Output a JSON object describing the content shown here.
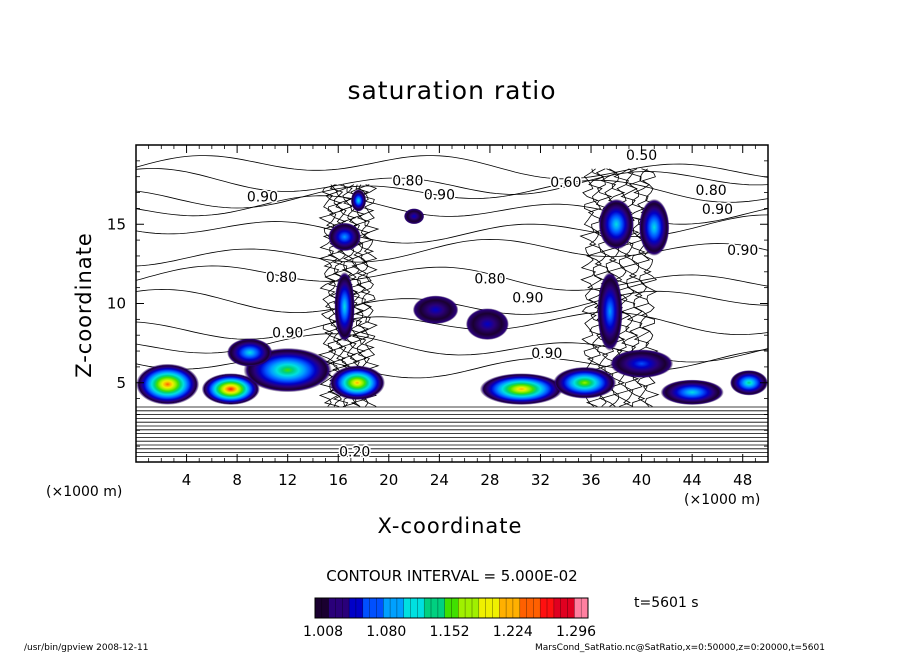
{
  "chart_data": {
    "type": "heatmap",
    "title": "saturation ratio",
    "xlabel": "X-coordinate",
    "ylabel": "Z-coordinate",
    "x_unit_left": "(×1000 m)",
    "x_unit_right": "(×1000 m)",
    "xlim": [
      0,
      50
    ],
    "ylim": [
      0,
      20
    ],
    "x_ticks": [
      4,
      8,
      12,
      16,
      20,
      24,
      28,
      32,
      36,
      40,
      44,
      48
    ],
    "x_tick_labels": [
      "4",
      "8",
      "12",
      "16",
      "20",
      "24",
      "28",
      "32",
      "36",
      "40",
      "44",
      "48"
    ],
    "y_ticks": [
      5,
      10,
      15
    ],
    "y_tick_labels": [
      "5",
      "10",
      "15"
    ],
    "contour_interval": "CONTOUR INTERVAL = 5.000E-02",
    "time_label": "t=5601 s",
    "colorbar": {
      "min": 1.008,
      "max": 1.3,
      "tick_labels": [
        "1.008",
        "1.080",
        "1.152",
        "1.224",
        "1.296"
      ],
      "colors": [
        "#1a0030",
        "#2a007a",
        "#0000c8",
        "#0050ff",
        "#00a0ff",
        "#00e0e0",
        "#00d080",
        "#40e000",
        "#a0f000",
        "#f0f000",
        "#ffb000",
        "#ff6000",
        "#ff1010",
        "#e00020",
        "#ff80a0"
      ]
    },
    "contour_labels": [
      {
        "text": "0.50",
        "x": 40.0,
        "z": 19.3
      },
      {
        "text": "0.90",
        "x": 10.0,
        "z": 16.7
      },
      {
        "text": "0.80",
        "x": 21.5,
        "z": 17.7
      },
      {
        "text": "0.90",
        "x": 24.0,
        "z": 16.8
      },
      {
        "text": "0.60",
        "x": 34.0,
        "z": 17.6
      },
      {
        "text": "0.80",
        "x": 45.5,
        "z": 17.1
      },
      {
        "text": "0.90",
        "x": 46.0,
        "z": 15.9
      },
      {
        "text": "0.90",
        "x": 48.0,
        "z": 13.3
      },
      {
        "text": "0.80",
        "x": 11.5,
        "z": 11.6
      },
      {
        "text": "0.80",
        "x": 28.0,
        "z": 11.5
      },
      {
        "text": "0.90",
        "x": 31.0,
        "z": 10.3
      },
      {
        "text": "0.90",
        "x": 12.0,
        "z": 8.1
      },
      {
        "text": "0.90",
        "x": 32.5,
        "z": 6.8
      },
      {
        "text": "0.20",
        "x": 17.3,
        "z": 0.6
      }
    ],
    "moist_patches": [
      {
        "x": 2.5,
        "z": 4.9,
        "rx": 2.5,
        "rz": 1.3,
        "peak": 0.95
      },
      {
        "x": 7.5,
        "z": 4.6,
        "rx": 2.3,
        "rz": 1.0,
        "peak": 1.0
      },
      {
        "x": 12.0,
        "z": 5.8,
        "rx": 3.5,
        "rz": 1.4,
        "peak": 0.55
      },
      {
        "x": 9.0,
        "z": 6.9,
        "rx": 1.8,
        "rz": 0.9,
        "peak": 0.45
      },
      {
        "x": 17.5,
        "z": 5.0,
        "rx": 2.2,
        "rz": 1.1,
        "peak": 0.8
      },
      {
        "x": 16.5,
        "z": 9.8,
        "rx": 0.8,
        "rz": 2.2,
        "peak": 0.4
      },
      {
        "x": 17.6,
        "z": 16.5,
        "rx": 0.6,
        "rz": 0.7,
        "peak": 0.45
      },
      {
        "x": 16.5,
        "z": 14.2,
        "rx": 1.3,
        "rz": 0.9,
        "peak": 0.3
      },
      {
        "x": 22.0,
        "z": 15.5,
        "rx": 0.8,
        "rz": 0.5,
        "peak": 0.15
      },
      {
        "x": 23.7,
        "z": 9.6,
        "rx": 1.8,
        "rz": 0.9,
        "peak": 0.15
      },
      {
        "x": 27.8,
        "z": 8.7,
        "rx": 1.7,
        "rz": 1.0,
        "peak": 0.15
      },
      {
        "x": 30.5,
        "z": 4.6,
        "rx": 3.3,
        "rz": 1.0,
        "peak": 0.85
      },
      {
        "x": 35.5,
        "z": 5.0,
        "rx": 2.5,
        "rz": 1.0,
        "peak": 0.7
      },
      {
        "x": 38.0,
        "z": 15.0,
        "rx": 1.4,
        "rz": 1.6,
        "peak": 0.45
      },
      {
        "x": 41.0,
        "z": 14.8,
        "rx": 1.2,
        "rz": 1.8,
        "peak": 0.45
      },
      {
        "x": 37.5,
        "z": 9.5,
        "rx": 1.0,
        "rz": 2.5,
        "peak": 0.3
      },
      {
        "x": 44.0,
        "z": 4.4,
        "rx": 2.5,
        "rz": 0.8,
        "peak": 0.45
      },
      {
        "x": 48.5,
        "z": 5.0,
        "rx": 1.5,
        "rz": 0.8,
        "peak": 0.5
      },
      {
        "x": 40.0,
        "z": 6.2,
        "rx": 2.5,
        "rz": 0.9,
        "peak": 0.25
      }
    ]
  },
  "footer": {
    "left": "/usr/bin/gpview   2008-12-11",
    "right": "MarsCond_SatRatio.nc@SatRatio,x=0:50000,z=0:20000,t=5601"
  }
}
